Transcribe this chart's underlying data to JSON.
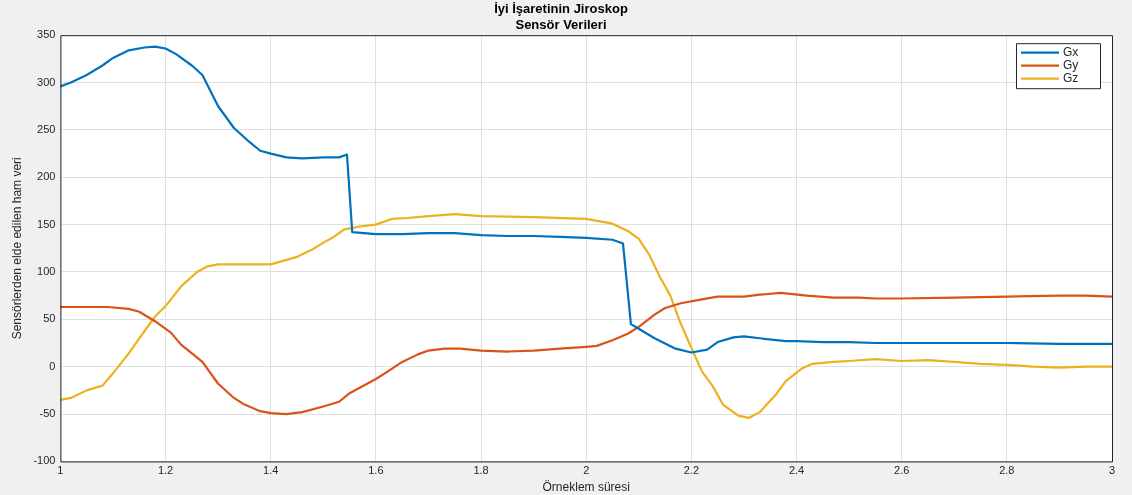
{
  "chart_data": {
    "type": "line",
    "title": "İyi İşaretinin Jiroskop\nSensör Verileri",
    "xlabel": "Örneklem süresi",
    "ylabel": "Sensörlerden elde edilen ham veri",
    "xlim": [
      1,
      3
    ],
    "xticks": [
      1,
      1.2,
      1.4,
      1.6,
      1.8,
      2,
      2.2,
      2.4,
      2.6,
      2.8,
      3
    ],
    "ylim": [
      -100,
      350
    ],
    "yticks": [
      -100,
      -50,
      0,
      50,
      100,
      150,
      200,
      250,
      300,
      350
    ],
    "grid": true,
    "legend": "top right",
    "marker": "none",
    "line_style": "solid",
    "series": [
      {
        "name": "Gx",
        "color": "#0072bd",
        "x": [
          1,
          1.02,
          1.05,
          1.08,
          1.1,
          1.13,
          1.16,
          1.18,
          1.2,
          1.22,
          1.25,
          1.27,
          1.3,
          1.33,
          1.36,
          1.38,
          1.4,
          1.43,
          1.46,
          1.5,
          1.53,
          1.545,
          1.555,
          1.6,
          1.65,
          1.7,
          1.75,
          1.8,
          1.85,
          1.9,
          1.95,
          2,
          2.05,
          2.07,
          2.085,
          2.1,
          2.13,
          2.17,
          2.2,
          2.23,
          2.25,
          2.28,
          2.3,
          2.33,
          2.38,
          2.4,
          2.45,
          2.5,
          2.55,
          2.6,
          2.7,
          2.8,
          2.9,
          3
        ],
        "values": [
          296,
          300,
          308,
          318,
          326,
          334,
          337,
          338,
          336,
          330,
          318,
          308,
          275,
          252,
          237,
          228,
          225,
          221,
          220,
          221,
          221,
          224,
          142,
          140,
          140,
          141,
          141,
          139,
          138,
          138,
          137,
          136,
          134,
          130,
          45,
          40,
          30,
          19,
          15,
          18,
          26,
          31,
          32,
          30,
          27,
          27,
          26,
          26,
          25,
          25,
          25,
          25,
          24,
          24
        ]
      },
      {
        "name": "Gy",
        "color": "#d95319",
        "x": [
          1,
          1.05,
          1.09,
          1.13,
          1.15,
          1.18,
          1.21,
          1.23,
          1.27,
          1.3,
          1.33,
          1.35,
          1.38,
          1.4,
          1.43,
          1.46,
          1.5,
          1.53,
          1.55,
          1.6,
          1.62,
          1.65,
          1.68,
          1.7,
          1.73,
          1.76,
          1.8,
          1.85,
          1.9,
          1.95,
          2,
          2.02,
          2.05,
          2.08,
          2.1,
          2.13,
          2.15,
          2.18,
          2.22,
          2.25,
          2.3,
          2.33,
          2.37,
          2.42,
          2.47,
          2.52,
          2.55,
          2.6,
          2.7,
          2.8,
          2.9,
          2.95,
          3
        ],
        "values": [
          63,
          63,
          63,
          61,
          58,
          48,
          36,
          23,
          5,
          -18,
          -33,
          -40,
          -47,
          -49,
          -50,
          -48,
          -42,
          -37,
          -28,
          -13,
          -6,
          5,
          13,
          17,
          19,
          19,
          17,
          16,
          17,
          19,
          21,
          22,
          28,
          35,
          42,
          55,
          62,
          67,
          71,
          74,
          74,
          76,
          78,
          75,
          73,
          73,
          72,
          72,
          73,
          74,
          75,
          75,
          74
        ]
      },
      {
        "name": "Gz",
        "color": "#edb120",
        "x": [
          1,
          1.02,
          1.05,
          1.08,
          1.1,
          1.13,
          1.15,
          1.18,
          1.2,
          1.23,
          1.26,
          1.28,
          1.3,
          1.35,
          1.4,
          1.45,
          1.48,
          1.5,
          1.52,
          1.54,
          1.57,
          1.6,
          1.63,
          1.66,
          1.7,
          1.75,
          1.8,
          1.9,
          2,
          2.05,
          2.08,
          2.1,
          2.12,
          2.14,
          2.16,
          2.18,
          2.2,
          2.22,
          2.24,
          2.26,
          2.29,
          2.31,
          2.33,
          2.36,
          2.38,
          2.41,
          2.43,
          2.47,
          2.5,
          2.55,
          2.6,
          2.65,
          2.7,
          2.75,
          2.8,
          2.85,
          2.9,
          2.95,
          3
        ],
        "values": [
          -35,
          -33,
          -25,
          -20,
          -7,
          14,
          30,
          53,
          64,
          85,
          100,
          106,
          108,
          108,
          108,
          116,
          124,
          131,
          137,
          145,
          148,
          150,
          156,
          157,
          159,
          161,
          159,
          158,
          156,
          151,
          143,
          135,
          118,
          95,
          75,
          45,
          20,
          -5,
          -20,
          -40,
          -52,
          -54,
          -48,
          -30,
          -15,
          -2,
          3,
          5,
          6,
          8,
          6,
          7,
          5,
          3,
          2,
          0,
          -1,
          0,
          0
        ]
      }
    ]
  }
}
